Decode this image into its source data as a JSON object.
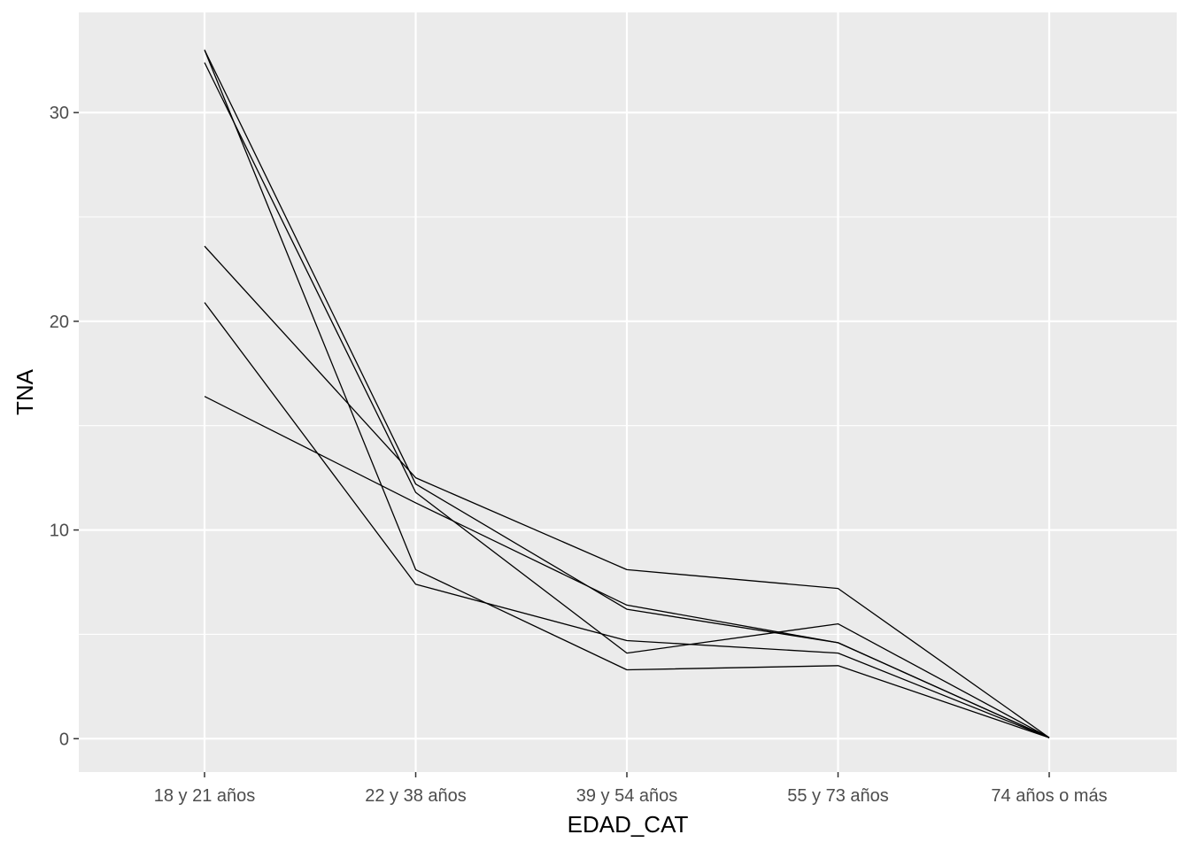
{
  "chart_data": {
    "type": "line",
    "title": "",
    "xlabel": "EDAD_CAT",
    "ylabel": "TNA",
    "categories": [
      "18 y 21 años",
      "22 y 38 años",
      "39 y 54 años",
      "55 y 73 años",
      "74 años o más"
    ],
    "y_ticks": [
      "0",
      "10",
      "20",
      "30"
    ],
    "ylim": [
      -1.6,
      34.8
    ],
    "grid": true,
    "legend": "none",
    "series": [
      {
        "values": [
          33.0,
          12.2,
          6.2,
          4.6,
          0.05
        ]
      },
      {
        "values": [
          32.4,
          11.8,
          4.1,
          5.5,
          0.05
        ]
      },
      {
        "values": [
          23.6,
          12.5,
          8.1,
          7.2,
          0.05
        ]
      },
      {
        "values": [
          20.9,
          7.4,
          4.7,
          4.1,
          0.05
        ]
      },
      {
        "values": [
          16.4,
          11.3,
          6.4,
          4.6,
          0.05
        ]
      },
      {
        "values": [
          33.0,
          8.1,
          3.3,
          3.5,
          0.05
        ]
      }
    ],
    "colors": {
      "panel": "#ebebeb",
      "grid": "#ffffff",
      "line": "#000000",
      "tick_text": "#4d4d4d",
      "tick_mark": "#333333"
    }
  }
}
